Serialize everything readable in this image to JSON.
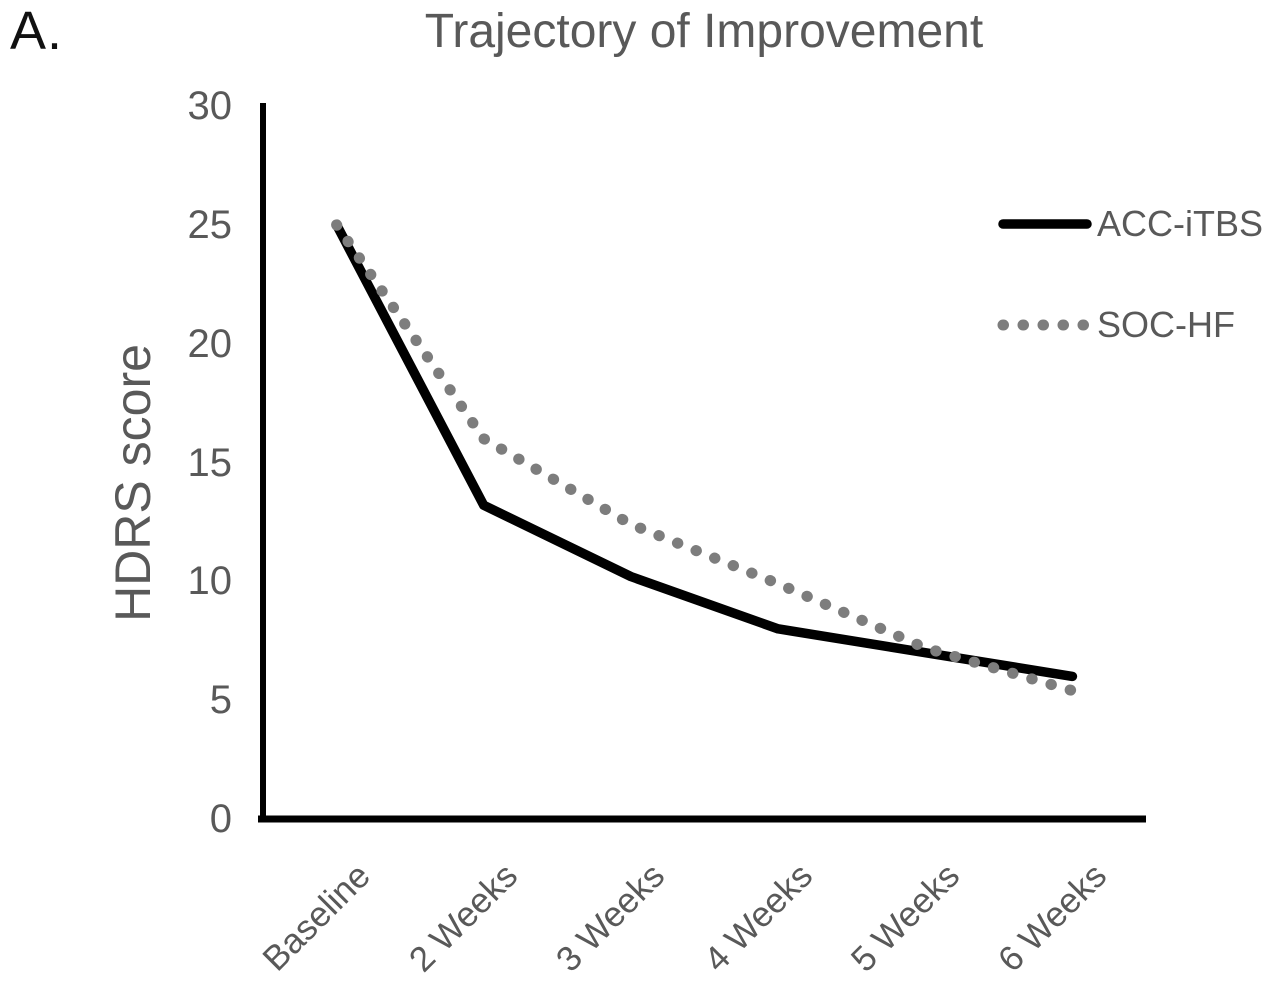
{
  "chart_data": {
    "type": "line",
    "panel_label": "A.",
    "title": "Trajectory of Improvement",
    "xlabel": "",
    "ylabel": "HDRS score",
    "ylim": [
      0,
      30
    ],
    "yticks": [
      0,
      5,
      10,
      15,
      20,
      25,
      30
    ],
    "categories": [
      "Baseline",
      "2 Weeks",
      "3 Weeks",
      "4 Weeks",
      "5 Weeks",
      "6 Weeks"
    ],
    "series": [
      {
        "name": "ACC-iTBS",
        "style": "solid",
        "color": "#000000",
        "values": [
          25,
          13.2,
          10.2,
          8,
          7,
          6
        ]
      },
      {
        "name": "SOC-HF",
        "style": "dotted",
        "color": "#7d7d7d",
        "values": [
          25,
          16,
          12.4,
          9.9,
          7.2,
          5.4
        ]
      }
    ],
    "legend_position": "right-top",
    "grid": false,
    "axis_color": "#000000",
    "text_color": "#595959",
    "background": "#ffffff"
  }
}
